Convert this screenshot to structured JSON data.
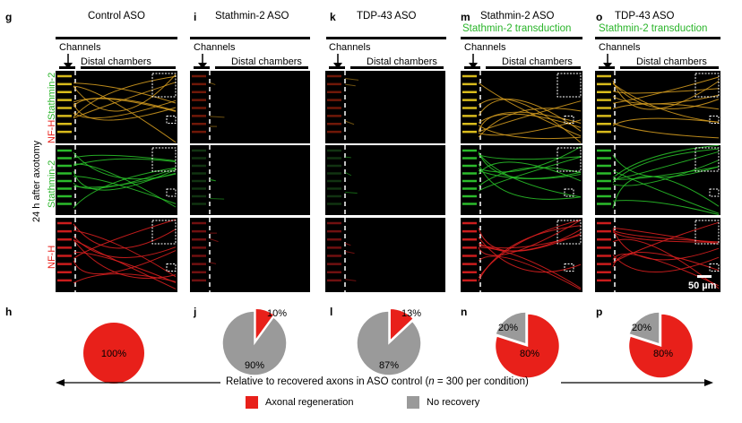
{
  "panels": [
    {
      "letter": "g",
      "title": "Control ASO",
      "subtitle": ""
    },
    {
      "letter": "i",
      "title": "Stathmin-2 ASO",
      "subtitle": ""
    },
    {
      "letter": "k",
      "title": "TDP-43 ASO",
      "subtitle": ""
    },
    {
      "letter": "m",
      "title": "Stathmin-2 ASO",
      "subtitle": "Stathmin-2 transduction"
    },
    {
      "letter": "o",
      "title": "TDP-43 ASO",
      "subtitle": "Stathmin-2 transduction"
    }
  ],
  "channels_label": "Channels",
  "distal_label": "Distal chambers",
  "row_labels": {
    "merged_a": "NF-H",
    "merged_b": "Stathmin-2",
    "green": "Stathmin-2",
    "red": "NF-H"
  },
  "side_label": "24 h after axotomy",
  "scale_bar": "50 µm",
  "pies": [
    {
      "letter": "h",
      "regen": 100,
      "norec": 0,
      "labels": [
        "100%",
        ""
      ]
    },
    {
      "letter": "j",
      "regen": 10,
      "norec": 90,
      "labels": [
        "10%",
        "90%"
      ]
    },
    {
      "letter": "l",
      "regen": 13,
      "norec": 87,
      "labels": [
        "13%",
        "87%"
      ]
    },
    {
      "letter": "n",
      "regen": 80,
      "norec": 20,
      "labels": [
        "80%",
        "20%"
      ]
    },
    {
      "letter": "p",
      "regen": 80,
      "norec": 20,
      "labels": [
        "80%",
        "20%"
      ]
    }
  ],
  "footer": {
    "prefix": "Relative to recovered axons in ASO control (",
    "n": "n",
    "suffix": " = 300 per condition)"
  },
  "legend": [
    {
      "label": "Axonal regeneration",
      "color": "#e8201a"
    },
    {
      "label": "No recovery",
      "color": "#9a9a9a"
    }
  ],
  "colors": {
    "red": "#e8201a",
    "gray": "#9a9a9a",
    "green": "#2ab52a"
  }
}
